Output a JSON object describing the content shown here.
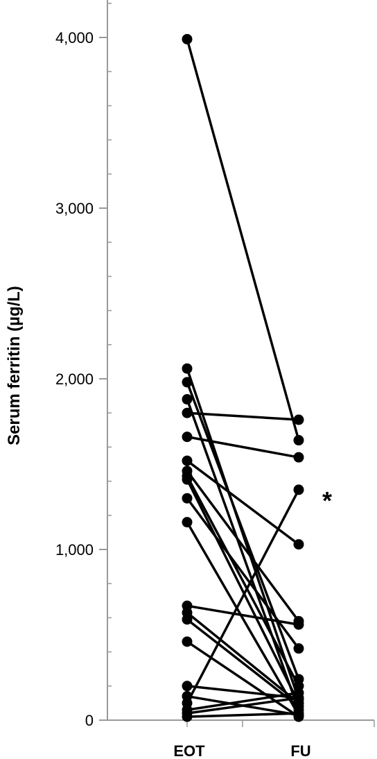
{
  "chart_data": {
    "type": "line",
    "title": "",
    "xlabel": "",
    "ylabel": "Serum ferritin (µg/L)",
    "categories": [
      "EOT",
      "FU"
    ],
    "ylim": [
      0,
      4200
    ],
    "yticks": [
      0,
      1000,
      2000,
      3000,
      4000
    ],
    "ytick_labels": [
      "0",
      "1,000",
      "2,000",
      "3,000",
      "4,000"
    ],
    "grid": false,
    "legend": "none",
    "annotation": "*",
    "annotated_series_index": 18,
    "line_color": "#000000",
    "series": [
      {
        "values": [
          3990,
          1640
        ]
      },
      {
        "values": [
          2060,
          120
        ]
      },
      {
        "values": [
          1980,
          240
        ]
      },
      {
        "values": [
          1880,
          60
        ]
      },
      {
        "values": [
          1800,
          1760
        ]
      },
      {
        "values": [
          1660,
          1540
        ]
      },
      {
        "values": [
          1520,
          1030
        ]
      },
      {
        "values": [
          1460,
          580
        ]
      },
      {
        "values": [
          1430,
          200
        ]
      },
      {
        "values": [
          1410,
          100
        ]
      },
      {
        "values": [
          1300,
          420
        ]
      },
      {
        "values": [
          1160,
          30
        ]
      },
      {
        "values": [
          670,
          560
        ]
      },
      {
        "values": [
          630,
          100
        ]
      },
      {
        "values": [
          590,
          80
        ]
      },
      {
        "values": [
          460,
          20
        ]
      },
      {
        "values": [
          200,
          130
        ]
      },
      {
        "values": [
          140,
          30
        ]
      },
      {
        "values": [
          100,
          1350
        ]
      },
      {
        "values": [
          60,
          160
        ]
      },
      {
        "values": [
          40,
          130
        ]
      },
      {
        "values": [
          20,
          40
        ]
      }
    ]
  }
}
